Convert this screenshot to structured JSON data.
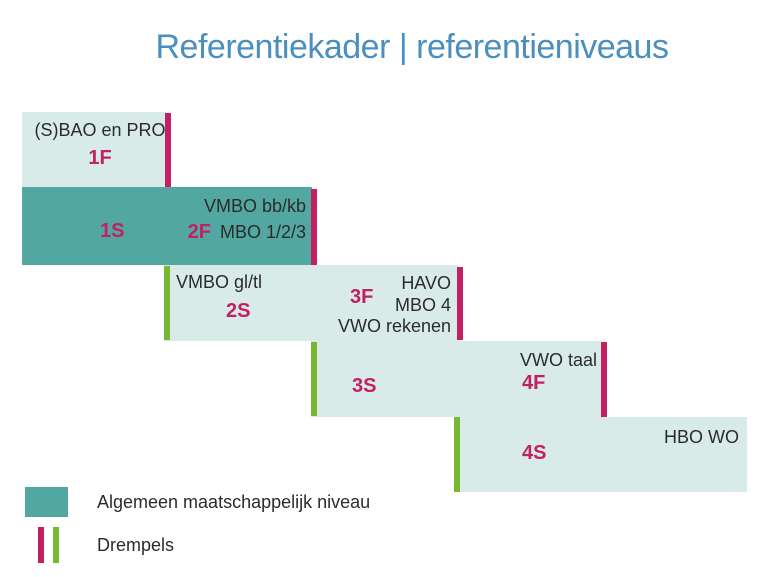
{
  "title": "Referentiekader | referentieniveaus",
  "colors": {
    "title_blue": "#4a8fbe",
    "teal_dark": "#52a8a1",
    "teal_light": "#d8ebe8",
    "pink": "#c32063",
    "green": "#77b733",
    "text_dark": "#2b2b2b"
  },
  "blocks": [
    {
      "school": "(S)BAO en PRO",
      "level_f": "1F"
    },
    {
      "level_s": "1S",
      "school_line1": "VMBO bb/kb",
      "level_f": "2F",
      "school_line2": "MBO 1/2/3"
    },
    {
      "school": "VMBO gl/tl",
      "level_s": "2S",
      "level_f": "3F",
      "right_lines": [
        "HAVO",
        "MBO 4",
        "VWO rekenen"
      ]
    },
    {
      "level_s": "3S",
      "school": "VWO taal",
      "level_f": "4F"
    },
    {
      "level_s": "4S",
      "school": "HBO WO"
    }
  ],
  "legend": {
    "niveau_label": "Algemeen maatschappelijk niveau",
    "drempels_label": "Drempels"
  }
}
